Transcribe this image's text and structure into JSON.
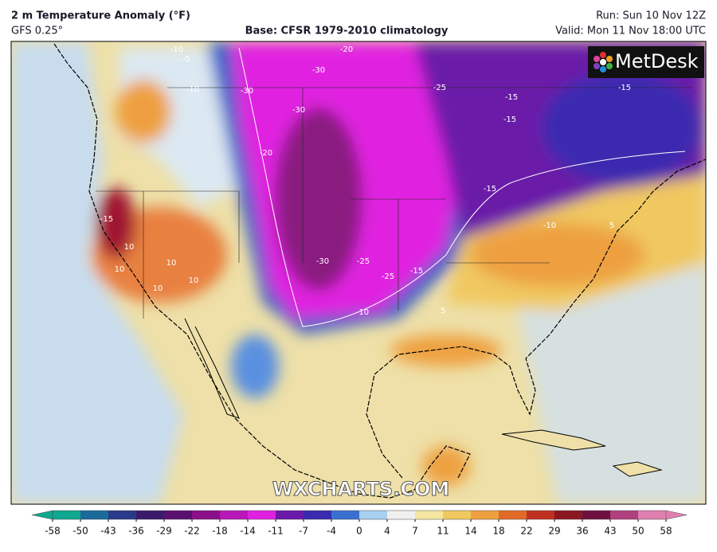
{
  "header": {
    "title": "2 m Temperature Anomaly (°F)",
    "model": "GFS 0.25°",
    "base": "Base: CFSR 1979-2010 climatology",
    "run": "Run: Sun 10 Nov 12Z",
    "valid": "Valid: Mon 11 Nov 18:00 UTC"
  },
  "map": {
    "logo": "MetDesk",
    "watermark": "WXCHARTS.COM",
    "contour_labels": [
      "-10",
      "-5",
      "-20",
      "-30",
      "-30",
      "-25",
      "-15",
      "-15",
      "-30",
      "-20",
      "-15",
      "-10",
      "-10",
      "5",
      "-15",
      "10",
      "10",
      "10",
      "10",
      "10",
      "-30",
      "-25",
      "-25",
      "-15",
      "5",
      "-10",
      "-15"
    ]
  },
  "colorbar": {
    "ticks": [
      -58,
      -50,
      -43,
      -36,
      -29,
      -22,
      -18,
      -14,
      -11,
      -7,
      -4,
      0,
      4,
      7,
      11,
      14,
      18,
      22,
      29,
      36,
      43,
      50,
      58
    ],
    "colors": [
      "#10a890",
      "#1a6a9a",
      "#2a3a8a",
      "#3a1a6a",
      "#5a1070",
      "#8a108a",
      "#b818b8",
      "#e020e0",
      "#6a1aa8",
      "#3a2ab0",
      "#3a70d0",
      "#a8d0f0",
      "#f0f0f0",
      "#f4e6a0",
      "#f0c860",
      "#eea040",
      "#e06a28",
      "#c03020",
      "#8a1820",
      "#701040",
      "#b04080",
      "#e080b0"
    ]
  }
}
